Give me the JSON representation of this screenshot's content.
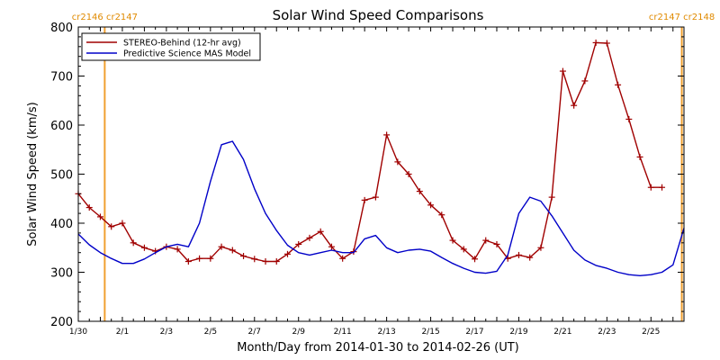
{
  "chart_data": {
    "type": "line",
    "title": "Solar Wind Speed Comparisons",
    "xlabel": "Month/Day from 2014-01-30 to 2014-02-26 (UT)",
    "ylabel": "Solar Wind Speed (km/s)",
    "ylim": [
      200,
      800
    ],
    "xlim": [
      0,
      27.5
    ],
    "x_unit": "days since 2014-01-30 00:00 UT",
    "x_ticks": [
      {
        "x": 0,
        "label": "1/30"
      },
      {
        "x": 2,
        "label": "2/1"
      },
      {
        "x": 4,
        "label": "2/3"
      },
      {
        "x": 6,
        "label": "2/5"
      },
      {
        "x": 8,
        "label": "2/7"
      },
      {
        "x": 10,
        "label": "2/9"
      },
      {
        "x": 12,
        "label": "2/11"
      },
      {
        "x": 14,
        "label": "2/13"
      },
      {
        "x": 16,
        "label": "2/15"
      },
      {
        "x": 18,
        "label": "2/17"
      },
      {
        "x": 20,
        "label": "2/19"
      },
      {
        "x": 22,
        "label": "2/21"
      },
      {
        "x": 24,
        "label": "2/23"
      },
      {
        "x": 26,
        "label": "2/25"
      }
    ],
    "y_ticks": [
      200,
      300,
      400,
      500,
      600,
      700,
      800
    ],
    "grid": false,
    "legend_position": "top-left",
    "carrington_markers": [
      {
        "x": 1.2,
        "label_left": "cr2146",
        "label_right": "cr2147",
        "side": "left"
      },
      {
        "x": 27.4,
        "label_left": "cr2147",
        "label_right": "cr2148",
        "side": "right"
      }
    ],
    "series": [
      {
        "name": "STEREO-Behind (12-hr avg)",
        "color": "#a00000",
        "marker": "plus",
        "x": [
          0,
          0.5,
          1.0,
          1.5,
          2.0,
          2.5,
          3.0,
          3.5,
          4.0,
          4.5,
          5.0,
          5.5,
          6.0,
          6.5,
          7.0,
          7.5,
          8.0,
          8.5,
          9.0,
          9.5,
          10.0,
          10.5,
          11.0,
          11.5,
          12.0,
          12.5,
          13.0,
          13.5,
          14.0,
          14.5,
          15.0,
          15.5,
          16.0,
          16.5,
          17.0,
          17.5,
          18.0,
          18.5,
          19.0,
          19.5,
          20.0,
          20.5,
          21.0,
          21.5,
          22.0,
          22.5,
          23.0,
          23.5,
          24.0,
          24.5,
          25.0,
          25.5,
          26.0,
          26.5
        ],
        "values": [
          460,
          432,
          413,
          393,
          400,
          360,
          350,
          343,
          352,
          347,
          322,
          328,
          328,
          352,
          345,
          333,
          327,
          322,
          322,
          337,
          357,
          370,
          383,
          352,
          328,
          342,
          447,
          453,
          580,
          525,
          500,
          465,
          437,
          417,
          365,
          347,
          327,
          365,
          357,
          328,
          335,
          330,
          350,
          453,
          710,
          640,
          690,
          768,
          767,
          682,
          612,
          535,
          473,
          473
        ]
      },
      {
        "name": "Predictive Science MAS Model",
        "color": "#0000c8",
        "marker": "none",
        "x": [
          0,
          0.5,
          1.0,
          1.5,
          2.0,
          2.5,
          3.0,
          3.5,
          4.0,
          4.5,
          5.0,
          5.5,
          6.0,
          6.5,
          7.0,
          7.5,
          8.0,
          8.5,
          9.0,
          9.5,
          10.0,
          10.5,
          11.0,
          11.5,
          12.0,
          12.5,
          13.0,
          13.5,
          14.0,
          14.5,
          15.0,
          15.5,
          16.0,
          16.5,
          17.0,
          17.5,
          18.0,
          18.5,
          19.0,
          19.5,
          20.0,
          20.5,
          21.0,
          21.5,
          22.0,
          22.5,
          23.0,
          23.5,
          24.0,
          24.5,
          25.0,
          25.5,
          26.0,
          26.5,
          27.0,
          27.5
        ],
        "values": [
          378,
          356,
          340,
          328,
          318,
          318,
          327,
          340,
          352,
          357,
          352,
          400,
          485,
          560,
          567,
          530,
          470,
          420,
          385,
          355,
          340,
          335,
          340,
          345,
          340,
          340,
          368,
          375,
          350,
          340,
          345,
          347,
          343,
          330,
          318,
          308,
          300,
          298,
          302,
          335,
          420,
          453,
          445,
          415,
          380,
          345,
          325,
          314,
          308,
          300,
          295,
          293,
          295,
          300,
          315,
          390
        ]
      }
    ]
  }
}
